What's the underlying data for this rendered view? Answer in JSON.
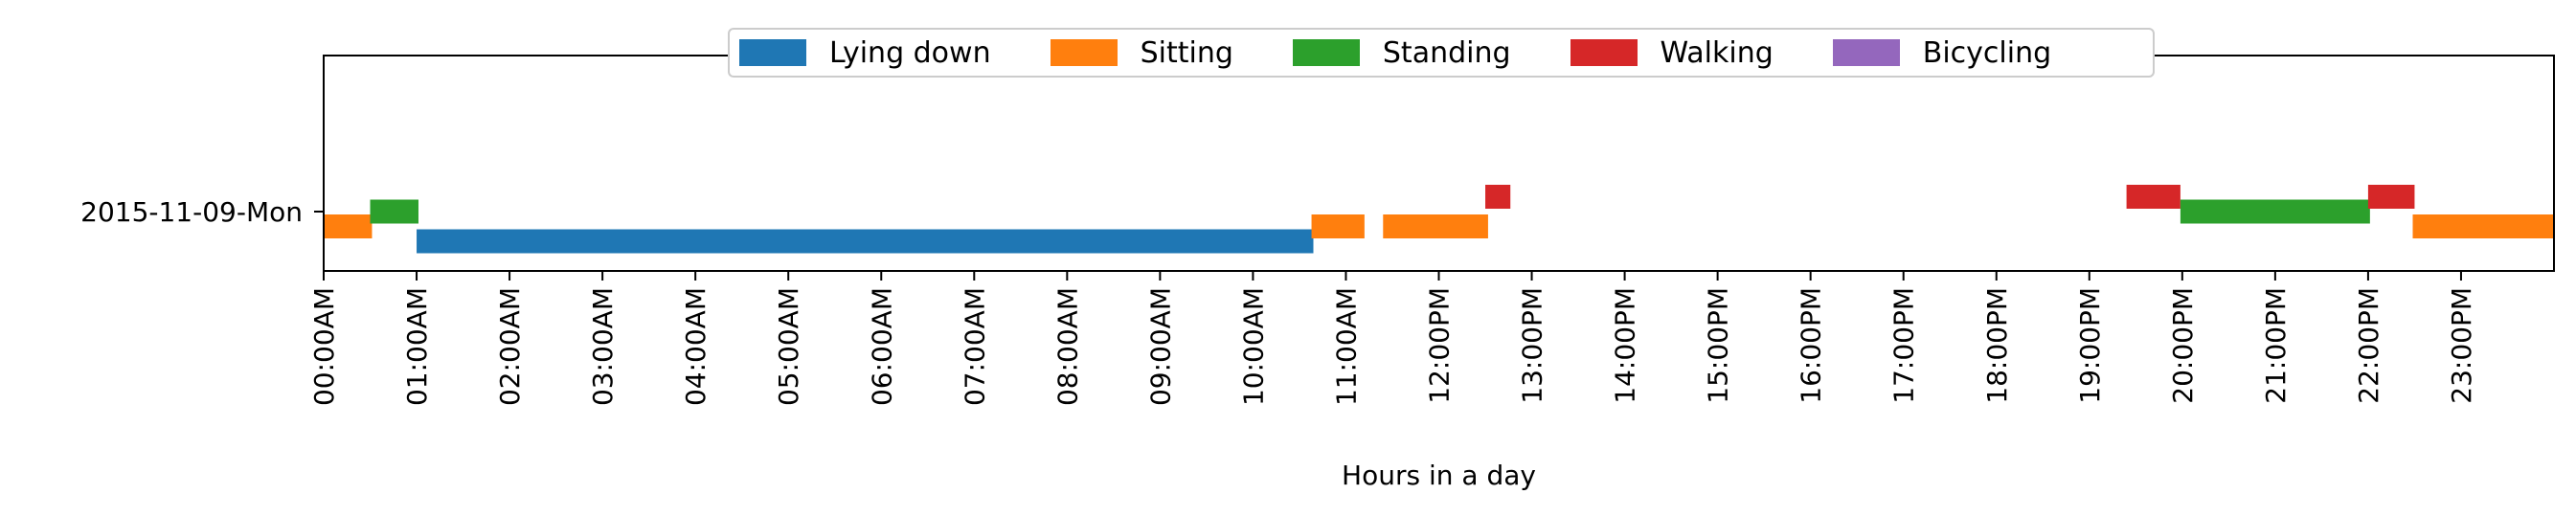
{
  "chart_data": {
    "type": "timeline",
    "xlabel": "Hours in a day",
    "ylabel": "",
    "row_label": "2015-11-09-Mon",
    "xlim": [
      0,
      24
    ],
    "tick_labels": [
      "00:00AM",
      "01:00AM",
      "02:00AM",
      "03:00AM",
      "04:00AM",
      "05:00AM",
      "06:00AM",
      "07:00AM",
      "08:00AM",
      "09:00AM",
      "10:00AM",
      "11:00AM",
      "12:00PM",
      "13:00PM",
      "14:00PM",
      "15:00PM",
      "16:00PM",
      "17:00PM",
      "18:00PM",
      "19:00PM",
      "20:00PM",
      "21:00PM",
      "22:00PM",
      "23:00PM"
    ],
    "legend_placement": "top-center",
    "grid": false,
    "categories": [
      {
        "name": "Lying down",
        "color": "#1f77b4",
        "lane": -1
      },
      {
        "name": "Sitting",
        "color": "#ff7f0e",
        "lane": -0.5
      },
      {
        "name": "Standing",
        "color": "#2ca02c",
        "lane": 0
      },
      {
        "name": "Walking",
        "color": "#d62728",
        "lane": 0.5
      },
      {
        "name": "Bicycling",
        "color": "#9467bd",
        "lane": 1
      }
    ],
    "segments": [
      {
        "activity": "Sitting",
        "start": 0.0,
        "end": 0.52
      },
      {
        "activity": "Standing",
        "start": 0.5,
        "end": 1.02
      },
      {
        "activity": "Lying down",
        "start": 1.0,
        "end": 10.65
      },
      {
        "activity": "Sitting",
        "start": 10.63,
        "end": 11.2
      },
      {
        "activity": "Sitting",
        "start": 11.4,
        "end": 12.53
      },
      {
        "activity": "Walking",
        "start": 12.5,
        "end": 12.77
      },
      {
        "activity": "Walking",
        "start": 19.4,
        "end": 19.98
      },
      {
        "activity": "Standing",
        "start": 19.98,
        "end": 22.02
      },
      {
        "activity": "Walking",
        "start": 22.0,
        "end": 22.5
      },
      {
        "activity": "Sitting",
        "start": 22.48,
        "end": 24.0
      }
    ]
  }
}
